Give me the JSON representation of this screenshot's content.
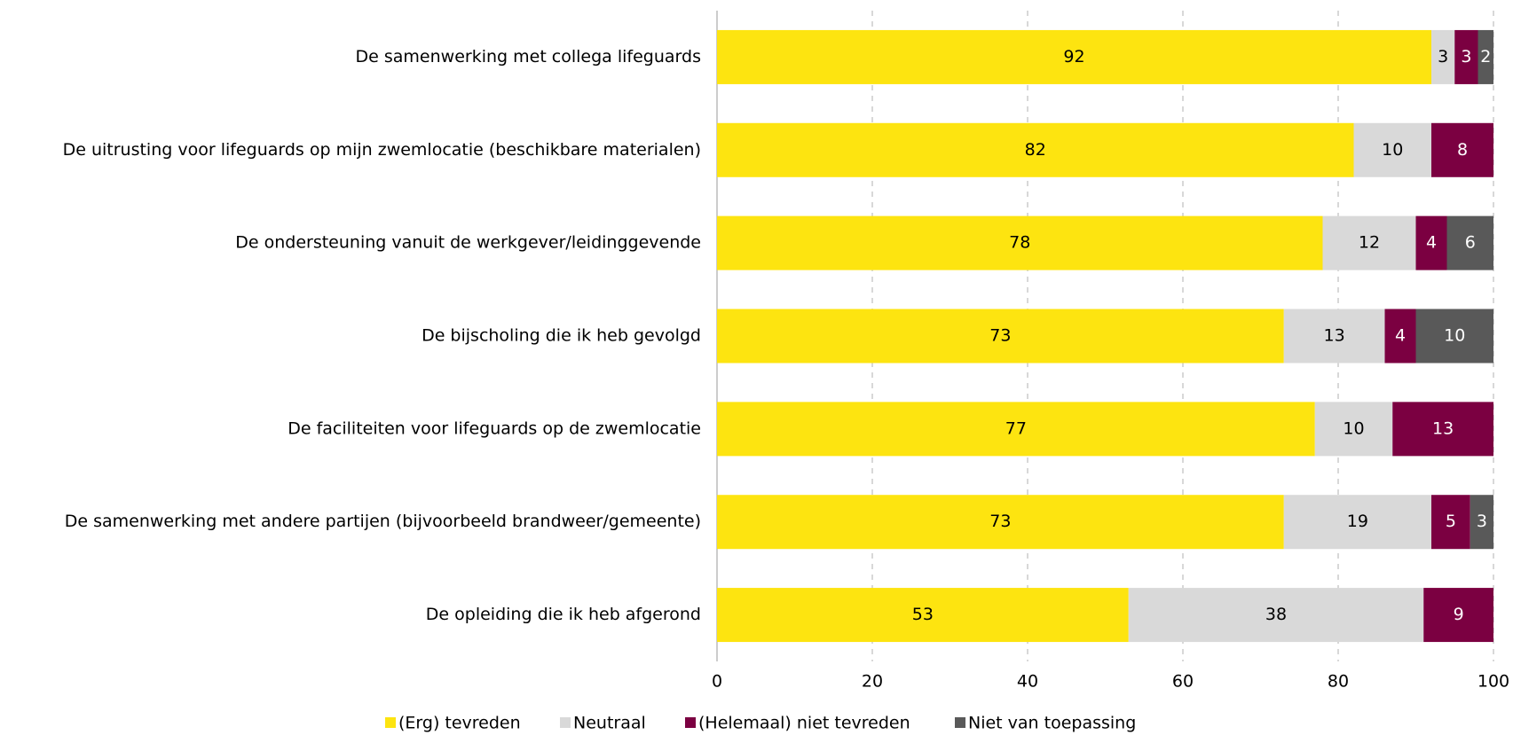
{
  "chart_data": {
    "type": "stacked-bar-horizontal",
    "categories": [
      "De samenwerking met collega lifeguards",
      "De uitrusting voor lifeguards op mijn zwemlocatie (beschikbare materialen)",
      "De ondersteuning vanuit de werkgever/leidinggevende",
      "De bijscholing die ik heb gevolgd",
      "De faciliteiten voor lifeguards op de zwemlocatie",
      "De samenwerking met andere partijen (bijvoorbeeld brandweer/gemeente)",
      "De opleiding die ik heb afgerond"
    ],
    "series": [
      {
        "name": "(Erg) tevreden",
        "color": "#fde410",
        "values": [
          92,
          82,
          78,
          73,
          77,
          73,
          53
        ]
      },
      {
        "name": "Neutraal",
        "color": "#d9d9d9",
        "values": [
          3,
          10,
          12,
          13,
          10,
          19,
          38
        ]
      },
      {
        "name": "(Helemaal) niet tevreden",
        "color": "#7b0041",
        "values": [
          3,
          8,
          4,
          4,
          13,
          5,
          9
        ]
      },
      {
        "name": "Niet van toepassing",
        "color": "#595959",
        "values": [
          2,
          null,
          6,
          10,
          null,
          3,
          null
        ]
      }
    ],
    "xlim": [
      0,
      100
    ],
    "xticks": [
      0,
      20,
      40,
      60,
      80,
      100
    ],
    "grid": true,
    "legend": "bottom"
  }
}
